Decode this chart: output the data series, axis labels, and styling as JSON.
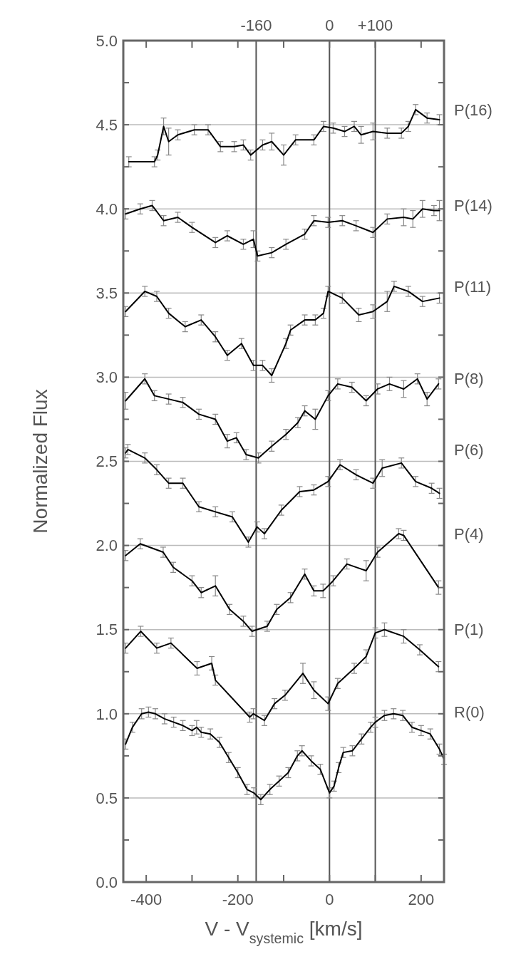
{
  "chart_data": {
    "type": "line",
    "xlabel": "V - V$_{systemic}$ [km/s]",
    "ylabel": "Normalized Flux",
    "xlim": [
      -450,
      250
    ],
    "xticks": [
      -400,
      {
        "value": -300,
        "label": null
      },
      -200,
      {
        "value": -100,
        "label": null
      },
      0,
      {
        "value": 100,
        "label": null
      },
      200
    ],
    "ylim": [
      0,
      5
    ],
    "yticks": [
      {
        "value": 0,
        "label": "0.0"
      },
      {
        "value": 0.25,
        "label": null
      },
      {
        "value": 0.5,
        "label": "0.5"
      },
      {
        "value": 0.75,
        "label": null
      },
      {
        "value": 1,
        "label": "1.0"
      },
      {
        "value": 1.25,
        "label": null
      },
      {
        "value": 1.5,
        "label": "1.5"
      },
      {
        "value": 1.75,
        "label": null
      },
      {
        "value": 2,
        "label": "2.0"
      },
      {
        "value": 2.25,
        "label": null
      },
      {
        "value": 2.5,
        "label": "2.5"
      },
      {
        "value": 2.75,
        "label": null
      },
      {
        "value": 3,
        "label": "3.0"
      },
      {
        "value": 3.25,
        "label": null
      },
      {
        "value": 3.5,
        "label": "3.5"
      },
      {
        "value": 3.75,
        "label": null
      },
      {
        "value": 4,
        "label": "4.0"
      },
      {
        "value": 4.25,
        "label": null
      },
      {
        "value": 4.5,
        "label": "4.5"
      },
      {
        "value": 4.75,
        "label": null
      },
      {
        "value": 5,
        "label": "5.0"
      }
    ],
    "grid": "y",
    "marker": "none",
    "line_style": "solid",
    "ref_lines": [
      {
        "axis": "x",
        "value": -160,
        "label": "-160",
        "color": "#555555"
      },
      {
        "axis": "x",
        "value": 0,
        "label": "0",
        "color": "#555555"
      },
      {
        "axis": "x",
        "value": 100,
        "label": "+100",
        "color": "#555555"
      }
    ],
    "series": [
      {
        "name": "P(16)",
        "color": "#000000",
        "x": [
          -438,
          -382,
          -375,
          -362,
          -351,
          -331,
          -295,
          -265,
          -238,
          -208,
          -188,
          -172,
          -146,
          -126,
          -100,
          -74,
          -34,
          -13,
          8,
          33,
          54,
          69,
          95,
          126,
          157,
          172,
          188,
          213,
          240
        ],
        "values": [
          4.28,
          4.28,
          4.32,
          4.49,
          4.4,
          4.44,
          4.47,
          4.47,
          4.37,
          4.37,
          4.38,
          4.32,
          4.38,
          4.4,
          4.32,
          4.41,
          4.41,
          4.49,
          4.48,
          4.46,
          4.49,
          4.44,
          4.46,
          4.45,
          4.45,
          4.49,
          4.59,
          4.54,
          4.53
        ],
        "errors": [
          0.03,
          0.03,
          0.03,
          0.05,
          0.08,
          0.03,
          0.03,
          0.03,
          0.03,
          0.03,
          0.03,
          0.03,
          0.03,
          0.05,
          0.06,
          0.03,
          0.03,
          0.03,
          0.03,
          0.03,
          0.03,
          0.05,
          0.05,
          0.03,
          0.03,
          0.03,
          0.03,
          0.03,
          0.03
        ]
      },
      {
        "name": "P(14)",
        "color": "#000000",
        "x": [
          -445,
          -413,
          -387,
          -362,
          -331,
          -300,
          -249,
          -223,
          -188,
          -166,
          -157,
          -126,
          -95,
          -54,
          -34,
          -3,
          28,
          58,
          95,
          126,
          162,
          182,
          203,
          228,
          240
        ],
        "values": [
          3.97,
          4.0,
          4.02,
          3.93,
          3.95,
          3.89,
          3.8,
          3.84,
          3.79,
          3.82,
          3.72,
          3.74,
          3.79,
          3.85,
          3.93,
          3.92,
          3.93,
          3.9,
          3.86,
          3.94,
          3.95,
          3.94,
          4.0,
          3.99,
          3.99
        ],
        "errors": [
          0.03,
          0.03,
          0.03,
          0.03,
          0.03,
          0.03,
          0.03,
          0.03,
          0.03,
          0.05,
          0.03,
          0.03,
          0.03,
          0.03,
          0.03,
          0.03,
          0.03,
          0.03,
          0.03,
          0.03,
          0.05,
          0.05,
          0.05,
          0.03,
          0.06
        ]
      },
      {
        "name": "P(11)",
        "color": "#000000",
        "x": [
          -445,
          -403,
          -377,
          -351,
          -315,
          -280,
          -249,
          -223,
          -192,
          -166,
          -146,
          -126,
          -95,
          -85,
          -54,
          -31,
          -13,
          -3,
          28,
          64,
          95,
          126,
          141,
          172,
          203,
          240
        ],
        "values": [
          3.39,
          3.51,
          3.48,
          3.38,
          3.3,
          3.34,
          3.24,
          3.13,
          3.2,
          3.07,
          3.07,
          3.01,
          3.2,
          3.28,
          3.34,
          3.34,
          3.38,
          3.51,
          3.47,
          3.37,
          3.39,
          3.45,
          3.54,
          3.51,
          3.45,
          3.47
        ],
        "errors": [
          0.03,
          0.03,
          0.03,
          0.03,
          0.03,
          0.03,
          0.03,
          0.03,
          0.03,
          0.03,
          0.03,
          0.04,
          0.03,
          0.03,
          0.03,
          0.03,
          0.03,
          0.03,
          0.03,
          0.04,
          0.04,
          0.06,
          0.03,
          0.03,
          0.03,
          0.03
        ]
      },
      {
        "name": "P(8)",
        "color": "#000000",
        "x": [
          -445,
          -403,
          -382,
          -351,
          -320,
          -285,
          -249,
          -223,
          -203,
          -182,
          -155,
          -126,
          -95,
          -69,
          -54,
          -31,
          -3,
          18,
          49,
          80,
          105,
          131,
          162,
          192,
          213,
          238
        ],
        "values": [
          2.86,
          2.99,
          2.89,
          2.87,
          2.85,
          2.78,
          2.75,
          2.62,
          2.64,
          2.54,
          2.52,
          2.59,
          2.66,
          2.73,
          2.8,
          2.75,
          2.89,
          2.96,
          2.94,
          2.86,
          2.93,
          2.96,
          2.93,
          2.99,
          2.87,
          2.96
        ],
        "errors": [
          0.05,
          0.03,
          0.03,
          0.03,
          0.03,
          0.03,
          0.03,
          0.04,
          0.03,
          0.03,
          0.03,
          0.03,
          0.03,
          0.03,
          0.03,
          0.06,
          0.03,
          0.03,
          0.03,
          0.03,
          0.03,
          0.04,
          0.05,
          0.03,
          0.04,
          0.03
        ]
      },
      {
        "name": "P(6)",
        "color": "#000000",
        "x": [
          -445,
          -440,
          -403,
          -377,
          -351,
          -320,
          -285,
          -249,
          -212,
          -177,
          -158,
          -142,
          -105,
          -65,
          -34,
          -3,
          23,
          58,
          95,
          115,
          157,
          188,
          223,
          240
        ],
        "values": [
          2.55,
          2.57,
          2.52,
          2.45,
          2.37,
          2.37,
          2.23,
          2.2,
          2.17,
          2.02,
          2.11,
          2.07,
          2.21,
          2.32,
          2.33,
          2.38,
          2.48,
          2.42,
          2.37,
          2.46,
          2.49,
          2.38,
          2.34,
          2.31
        ],
        "errors": [
          0.03,
          0.03,
          0.03,
          0.03,
          0.03,
          0.03,
          0.03,
          0.03,
          0.03,
          0.03,
          0.03,
          0.03,
          0.03,
          0.03,
          0.03,
          0.03,
          0.03,
          0.03,
          0.03,
          0.05,
          0.03,
          0.03,
          0.03,
          0.03
        ]
      },
      {
        "name": "P(4)",
        "color": "#000000",
        "x": [
          -445,
          -413,
          -363,
          -341,
          -300,
          -280,
          -249,
          -218,
          -188,
          -169,
          -136,
          -115,
          -85,
          -54,
          -34,
          -14,
          8,
          38,
          80,
          105,
          151,
          162,
          238
        ],
        "values": [
          1.94,
          2.01,
          1.96,
          1.87,
          1.79,
          1.72,
          1.76,
          1.62,
          1.55,
          1.49,
          1.52,
          1.62,
          1.69,
          1.83,
          1.73,
          1.73,
          1.79,
          1.89,
          1.85,
          1.96,
          2.07,
          2.06,
          1.75
        ],
        "errors": [
          0.03,
          0.03,
          0.03,
          0.03,
          0.03,
          0.03,
          0.06,
          0.03,
          0.03,
          0.03,
          0.03,
          0.03,
          0.03,
          0.03,
          0.03,
          0.04,
          0.03,
          0.03,
          0.06,
          0.03,
          0.03,
          0.03,
          0.04
        ]
      },
      {
        "name": "P(1)",
        "color": "#000000",
        "x": [
          -445,
          -412,
          -377,
          -346,
          -289,
          -257,
          -249,
          -174,
          -166,
          -142,
          -120,
          -97,
          -58,
          -34,
          -3,
          18,
          54,
          80,
          100,
          120,
          162,
          197,
          238
        ],
        "values": [
          1.39,
          1.49,
          1.39,
          1.42,
          1.27,
          1.3,
          1.2,
          0.98,
          1.0,
          0.96,
          1.06,
          1.11,
          1.24,
          1.14,
          1.06,
          1.18,
          1.27,
          1.34,
          1.48,
          1.5,
          1.46,
          1.38,
          1.28
        ],
        "errors": [
          0.03,
          0.03,
          0.03,
          0.03,
          0.04,
          0.04,
          0.03,
          0.03,
          0.03,
          0.03,
          0.03,
          0.03,
          0.06,
          0.05,
          0.04,
          0.03,
          0.03,
          0.04,
          0.03,
          0.04,
          0.04,
          0.03,
          0.03
        ]
      },
      {
        "name": "R(0)",
        "color": "#000000",
        "x": [
          -445,
          -430,
          -410,
          -395,
          -380,
          -360,
          -340,
          -320,
          -300,
          -290,
          -280,
          -260,
          -240,
          -220,
          -200,
          -180,
          -165,
          -150,
          -130,
          -110,
          -90,
          -70,
          -60,
          -40,
          -20,
          0,
          10,
          20,
          30,
          50,
          70,
          90,
          100,
          120,
          140,
          160,
          180,
          200,
          220,
          240,
          250
        ],
        "values": [
          0.82,
          0.92,
          1.0,
          1.01,
          1.0,
          0.97,
          0.95,
          0.93,
          0.9,
          0.92,
          0.89,
          0.88,
          0.83,
          0.74,
          0.65,
          0.55,
          0.53,
          0.49,
          0.55,
          0.6,
          0.65,
          0.75,
          0.78,
          0.72,
          0.67,
          0.53,
          0.57,
          0.68,
          0.77,
          0.78,
          0.85,
          0.92,
          0.95,
          0.99,
          1.0,
          0.99,
          0.92,
          0.9,
          0.88,
          0.79,
          0.73
        ],
        "errors": [
          0.03,
          0.03,
          0.03,
          0.03,
          0.03,
          0.03,
          0.03,
          0.03,
          0.03,
          0.04,
          0.03,
          0.03,
          0.03,
          0.03,
          0.03,
          0.03,
          0.03,
          0.03,
          0.03,
          0.03,
          0.03,
          0.03,
          0.03,
          0.03,
          0.03,
          0.03,
          0.03,
          0.03,
          0.03,
          0.03,
          0.03,
          0.03,
          0.03,
          0.03,
          0.03,
          0.03,
          0.03,
          0.03,
          0.03,
          0.03,
          0.03
        ]
      }
    ]
  }
}
